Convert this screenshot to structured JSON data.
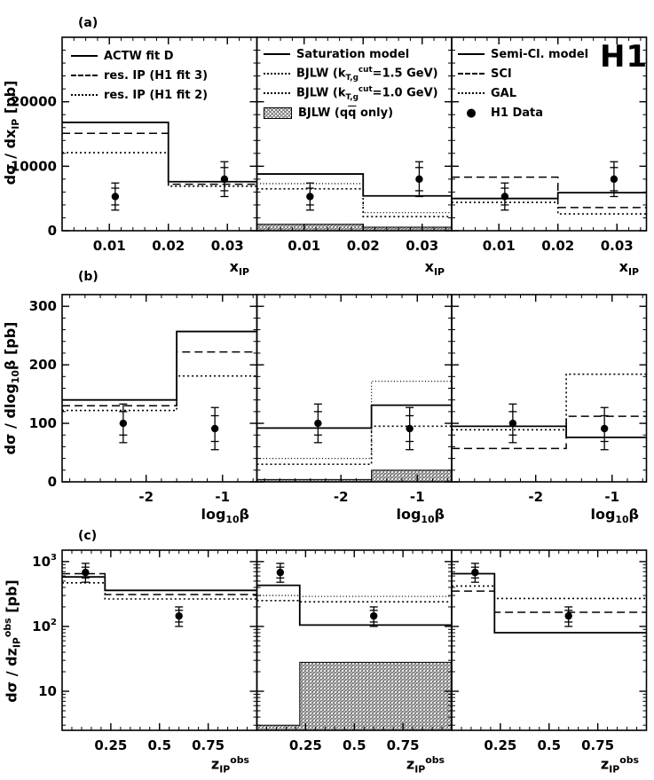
{
  "figure": {
    "logo": "H1",
    "background_color": "#ffffff",
    "line_color": "#000000"
  },
  "chart_data": [
    {
      "type": "step-histogram",
      "panel_label": "(a)",
      "ylabel_html": "dσ / dx<sub>IP</sub> [pb]",
      "xlabel_html": "x<sub>IP</sub>",
      "yscale": "linear",
      "ylim": [
        0,
        30000
      ],
      "yticks": [
        {
          "v": 0,
          "label": "0"
        },
        {
          "v": 10000,
          "label": "10000"
        },
        {
          "v": 20000,
          "label": "20000"
        }
      ],
      "yminor_step": 2000,
      "xlim": [
        0.002,
        0.035
      ],
      "xticks": [
        {
          "v": 0.01,
          "label": "0.01"
        },
        {
          "v": 0.02,
          "label": "0.02"
        },
        {
          "v": 0.03,
          "label": "0.03"
        }
      ],
      "xminor_step": 0.002,
      "bin_edges": [
        0.002,
        0.02,
        0.035
      ],
      "data_points": [
        {
          "x": 0.011,
          "y": 5300,
          "stat": [
            1300,
            1300
          ],
          "tot": [
            2100,
            2100
          ]
        },
        {
          "x": 0.0295,
          "y": 8000,
          "stat": [
            1800,
            1800
          ],
          "tot": [
            2700,
            2700
          ]
        }
      ],
      "panels": [
        {
          "show_legend": true,
          "curves": [
            {
              "style": "solid",
              "label_html": "ACTW fit D",
              "values": [
                16800,
                7600
              ]
            },
            {
              "style": "dashed",
              "label_html": "res. IP (H1 fit 3)",
              "values": [
                15100,
                7200
              ]
            },
            {
              "style": "dotted",
              "label_html": "res. IP (H1 fit 2)",
              "values": [
                12100,
                6900
              ]
            }
          ]
        },
        {
          "show_legend": true,
          "curves": [
            {
              "style": "solid",
              "label_html": "Saturation model",
              "values": [
                8800,
                5400
              ]
            },
            {
              "style": "dotted",
              "label_html": "BJLW (k<sub>T,g</sub><sup>cut</sup>=1.5 GeV)",
              "values": [
                6500,
                2200
              ]
            },
            {
              "style": "dotted2",
              "label_html": "BJLW (k<sub>T,g</sub><sup>cut</sup>=1.0 GeV)",
              "values": [
                7300,
                2800
              ]
            },
            {
              "style": "hatch",
              "label_html": "BJLW (q<span class=\"ov\">q</span> only)",
              "values": [
                1000,
                550
              ]
            }
          ]
        },
        {
          "show_legend": true,
          "extra_legend": [
            {
              "style": "point",
              "label_html": "H1 Data"
            }
          ],
          "curves": [
            {
              "style": "solid",
              "label_html": "Semi-Cl. model",
              "values": [
                5000,
                5900
              ]
            },
            {
              "style": "dashed",
              "label_html": "SCI",
              "values": [
                8300,
                3600
              ]
            },
            {
              "style": "dotted",
              "label_html": "GAL",
              "values": [
                4400,
                2600
              ]
            }
          ]
        }
      ]
    },
    {
      "type": "step-histogram",
      "panel_label": "(b)",
      "ylabel_html": "dσ / dlog<sub>10</sub>β [pb]",
      "xlabel_html": "log<sub>10</sub>β",
      "yscale": "linear",
      "ylim": [
        0,
        320
      ],
      "yticks": [
        {
          "v": 0,
          "label": "0"
        },
        {
          "v": 100,
          "label": "100"
        },
        {
          "v": 200,
          "label": "200"
        },
        {
          "v": 300,
          "label": "300"
        }
      ],
      "yminor_step": 20,
      "xlim": [
        -3.1,
        -0.55
      ],
      "xticks": [
        {
          "v": -2,
          "label": "-2"
        },
        {
          "v": -1,
          "label": "-1"
        }
      ],
      "xminor_step": 0.2,
      "bin_edges": [
        -3.1,
        -1.6,
        -0.55
      ],
      "data_points": [
        {
          "x": -2.3,
          "y": 100,
          "stat": [
            20,
            20
          ],
          "tot": [
            33,
            33
          ]
        },
        {
          "x": -1.1,
          "y": 91,
          "stat": [
            22,
            22
          ],
          "tot": [
            36,
            36
          ]
        }
      ],
      "panels": [
        {
          "show_legend": false,
          "curves": [
            {
              "style": "solid",
              "values": [
                140,
                257
              ]
            },
            {
              "style": "dashed",
              "values": [
                130,
                222
              ]
            },
            {
              "style": "dotted",
              "values": [
                122,
                181
              ]
            }
          ]
        },
        {
          "show_legend": false,
          "curves": [
            {
              "style": "solid",
              "values": [
                92,
                131
              ]
            },
            {
              "style": "dotted",
              "values": [
                30,
                95
              ]
            },
            {
              "style": "dotted2",
              "values": [
                40,
                172
              ]
            },
            {
              "style": "hatch",
              "values": [
                4,
                20
              ]
            }
          ]
        },
        {
          "show_legend": false,
          "curves": [
            {
              "style": "solid",
              "values": [
                95,
                76
              ]
            },
            {
              "style": "dashed",
              "values": [
                57,
                112
              ]
            },
            {
              "style": "dotted",
              "values": [
                89,
                184
              ]
            }
          ]
        }
      ]
    },
    {
      "type": "step-histogram",
      "panel_label": "(c)",
      "ylabel_html": "dσ / dz<sub>IP</sub><sup>obs</sup> [pb]",
      "xlabel_html": "z<sub>IP</sub><sup>obs</sup>",
      "yscale": "log",
      "ylim": [
        2.5,
        1500
      ],
      "yticks": [
        {
          "v": 10,
          "label": "10"
        },
        {
          "v": 100,
          "label": "10^2"
        },
        {
          "v": 1000,
          "label": "10^3"
        }
      ],
      "xlim": [
        0,
        1.0
      ],
      "xticks": [
        {
          "v": 0.25,
          "label": "0.25"
        },
        {
          "v": 0.5,
          "label": "0.5"
        },
        {
          "v": 0.75,
          "label": "0.75"
        }
      ],
      "xminor_step": 0.05,
      "bin_edges": [
        0,
        0.22,
        1.0
      ],
      "data_points": [
        {
          "x": 0.12,
          "y": 680,
          "stat": [
            120,
            140
          ],
          "tot": [
            200,
            260
          ]
        },
        {
          "x": 0.6,
          "y": 145,
          "stat": [
            28,
            32
          ],
          "tot": [
            45,
            55
          ]
        }
      ],
      "panels": [
        {
          "show_legend": false,
          "curves": [
            {
              "style": "solid",
              "values": [
                580,
                360
              ]
            },
            {
              "style": "dashed",
              "values": [
                650,
                310
              ]
            },
            {
              "style": "dotted",
              "values": [
                470,
                265
              ]
            }
          ]
        },
        {
          "show_legend": false,
          "curves": [
            {
              "style": "solid",
              "values": [
                430,
                105
              ]
            },
            {
              "style": "dotted",
              "values": [
                250,
                240
              ]
            },
            {
              "style": "dotted2",
              "values": [
                300,
                290
              ]
            },
            {
              "style": "hatch",
              "values": [
                3,
                28
              ]
            }
          ]
        },
        {
          "show_legend": false,
          "curves": [
            {
              "style": "solid",
              "values": [
                650,
                80
              ]
            },
            {
              "style": "dashed",
              "values": [
                350,
                165
              ]
            },
            {
              "style": "dotted",
              "values": [
                420,
                270
              ]
            }
          ]
        }
      ]
    }
  ]
}
